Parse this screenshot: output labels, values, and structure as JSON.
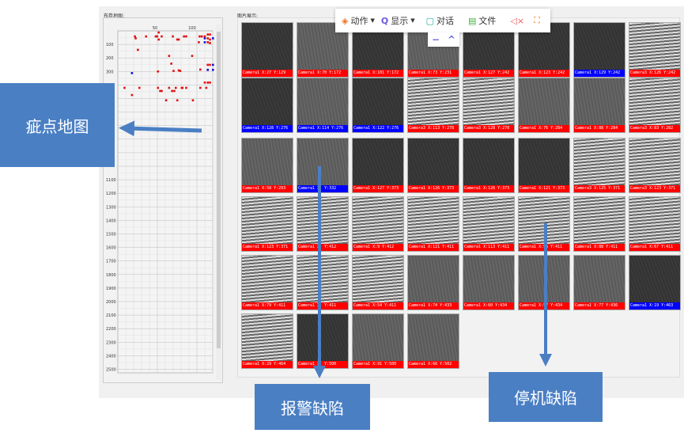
{
  "map": {
    "title": "布卷地图:",
    "x_ticks": [
      50,
      100
    ],
    "y_ticks": [
      100,
      200,
      300,
      1100,
      1200,
      1300,
      1400,
      1500,
      1600,
      1700,
      1800,
      1900,
      2000,
      2100,
      2200,
      2300,
      2400,
      2500
    ],
    "red_points": [
      [
        23,
        41
      ],
      [
        24,
        55
      ],
      [
        38,
        41
      ],
      [
        51,
        41
      ],
      [
        53,
        41
      ],
      [
        55,
        64
      ],
      [
        59,
        41
      ],
      [
        74,
        41
      ],
      [
        80,
        64
      ],
      [
        82,
        64
      ],
      [
        89,
        41
      ],
      [
        92,
        41
      ],
      [
        110,
        41
      ],
      [
        113,
        41
      ],
      [
        109,
        84
      ],
      [
        55,
        12
      ],
      [
        27,
        140
      ],
      [
        69,
        185
      ],
      [
        100,
        185
      ],
      [
        72,
        242
      ],
      [
        54,
        300
      ],
      [
        75,
        296
      ],
      [
        82,
        292
      ],
      [
        84,
        296
      ],
      [
        111,
        286
      ],
      [
        9,
        421
      ],
      [
        19,
        474
      ],
      [
        29,
        421
      ],
      [
        54,
        421
      ],
      [
        57,
        444
      ],
      [
        59,
        444
      ],
      [
        69,
        421
      ],
      [
        73,
        444
      ],
      [
        76,
        444
      ],
      [
        78,
        421
      ],
      [
        86,
        421
      ],
      [
        87,
        421
      ],
      [
        92,
        421
      ],
      [
        111,
        421
      ],
      [
        119,
        421
      ],
      [
        65,
        513
      ],
      [
        80,
        513
      ],
      [
        101,
        513
      ],
      [
        121,
        27
      ],
      [
        124,
        27
      ],
      [
        117,
        41
      ],
      [
        121,
        55
      ],
      [
        124,
        64
      ],
      [
        121,
        84
      ],
      [
        124,
        90
      ],
      [
        121,
        251
      ],
      [
        124,
        251
      ],
      [
        121,
        288
      ],
      [
        117,
        382
      ],
      [
        121,
        382
      ],
      [
        124,
        382
      ]
    ],
    "blue_points": [
      [
        19,
        312
      ],
      [
        117,
        55
      ],
      [
        128,
        55
      ],
      [
        117,
        84
      ],
      [
        128,
        251
      ],
      [
        121,
        288
      ],
      [
        128,
        288
      ]
    ],
    "colors": {
      "red": "#e01010",
      "blue": "#1010d0"
    }
  },
  "gallery": {
    "title": "图片展示:",
    "colors": {
      "alarm": "#ff0000",
      "stop": "#0000ff"
    },
    "tiles": [
      [
        [
          "Camera1 X:27 Y:129",
          "r",
          "dark"
        ],
        [
          "Camera1 X:70 Y:172",
          "r",
          "med"
        ],
        [
          "Camera1 X:101 Y:172",
          "r",
          "dark"
        ],
        [
          "Camera1 X:73 Y:231",
          "r",
          "med"
        ],
        [
          "Camera1 X:127 Y:242",
          "r",
          "dark"
        ],
        [
          "Camera1 X:123 Y:242",
          "r",
          "dark"
        ],
        [
          "Camera1 X:129 Y:242",
          "b",
          "dark"
        ],
        [
          "Camera3 X:126 Y:242",
          "r",
          "stripe"
        ]
      ],
      [
        [
          "Camera1 X:128 Y:276",
          "b",
          "dark"
        ],
        [
          "Camera1 X:114 Y:276",
          "b",
          "med"
        ],
        [
          "Camera1 X:122 Y:276",
          "b",
          "dark"
        ],
        [
          "Camera3 X:113 Y:278",
          "r",
          "stripe"
        ],
        [
          "Camera3 X:128 Y:278",
          "r",
          "stripe"
        ],
        [
          "Camera1 X:76 Y:284",
          "r",
          "med"
        ],
        [
          "Camera1 X:88 Y:284",
          "r",
          "med"
        ],
        [
          "Camera3 X:83 Y:282",
          "r",
          "stripe"
        ]
      ],
      [
        [
          "Camera1 X:58 Y:293",
          "r",
          "med"
        ],
        [
          "Camera1 X: Y:332",
          "b",
          "med"
        ],
        [
          "Camera1 X:127 Y:373",
          "r",
          "dark"
        ],
        [
          "Camera1 X:126 Y:373",
          "r",
          "dark"
        ],
        [
          "Camera1 X:126 Y:373",
          "r",
          "dark"
        ],
        [
          "Camera1 X:121 Y:373",
          "r",
          "dark"
        ],
        [
          "Camera3 X:125 Y:371",
          "r",
          "stripe"
        ],
        [
          "Camera3 X:123 Y:371",
          "r",
          "stripe"
        ]
      ],
      [
        [
          "Camera1 X:123 Y:371",
          "r",
          "stripe"
        ],
        [
          "Camera1 X: Y:412",
          "r",
          "stripe"
        ],
        [
          "Camera1 X:9 Y:412",
          "r",
          "stripe"
        ],
        [
          "Camera1 X:121 Y:411",
          "r",
          "stripe"
        ],
        [
          "Camera1 X:113 Y:411",
          "r",
          "stripe"
        ],
        [
          "Camera1 X:56 Y:411",
          "r",
          "stripe"
        ],
        [
          "Camera1 X:88 Y:411",
          "r",
          "stripe"
        ],
        [
          "Camera1 X:67 Y:411",
          "r",
          "stripe"
        ]
      ],
      [
        [
          "Camera1 X:79 Y:411",
          "r",
          "stripe"
        ],
        [
          "Camera1 X: Y:411",
          "r",
          "stripe"
        ],
        [
          "Camera1 X:54 Y:411",
          "r",
          "stripe"
        ],
        [
          "Camera1 X:74 Y:433",
          "r",
          "med"
        ],
        [
          "Camera1 X:60 Y:434",
          "r",
          "med"
        ],
        [
          "Camera1 X:57 Y:434",
          "r",
          "med"
        ],
        [
          "Camera1 X:77 Y:436",
          "r",
          "med"
        ],
        [
          "Camera1 X:19 Y:463",
          "b",
          "dark"
        ]
      ],
      [
        [
          "Camera1 X:29 Y:464",
          "r",
          "stripe"
        ],
        [
          "Camera1 X: Y:500",
          "r",
          "dark"
        ],
        [
          "Camera1 X:91 Y:500",
          "r",
          "med"
        ],
        [
          "Camera1 X:66 Y:502",
          "r",
          "med"
        ]
      ]
    ]
  },
  "toolbar": {
    "action": "动作",
    "display": "显示",
    "chat": "对话",
    "file": "文件",
    "minus": "−",
    "up": "^"
  },
  "callouts": {
    "map": "疵点地图",
    "alarm": "报警缺陷",
    "stop": "停机缺陷"
  },
  "accent": "#4a7fc4"
}
